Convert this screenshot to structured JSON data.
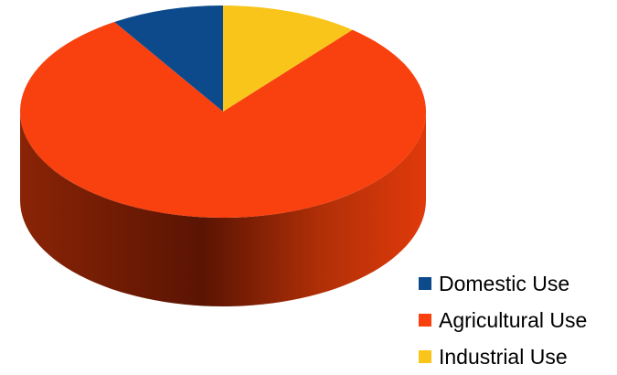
{
  "chart_data": {
    "type": "pie",
    "title": "",
    "legend_position": "bottom-right",
    "categories": [
      "Domestic Use",
      "Agricultural Use",
      "Industrial Use"
    ],
    "values": [
      9,
      80,
      11
    ],
    "colors": [
      "#0d4a8c",
      "#f8410e",
      "#f9c51b"
    ]
  }
}
